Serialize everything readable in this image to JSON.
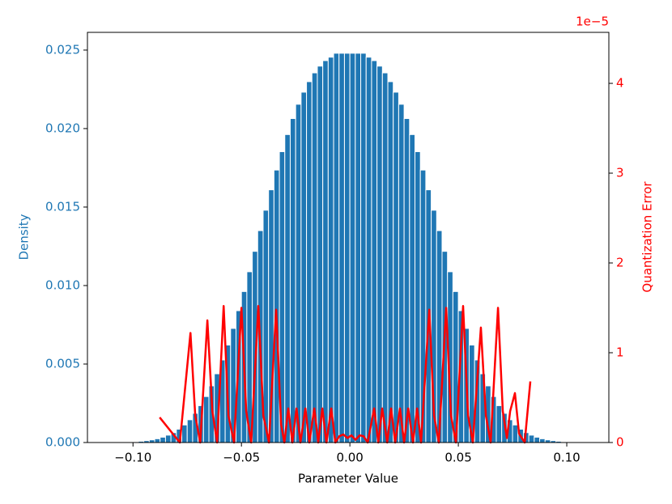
{
  "chart_data": {
    "type": "histogram",
    "xlabel": "Parameter Value",
    "ylabel": "Density",
    "y2label": "Quantization Error",
    "y2_offset_text": "1e−5",
    "color": "#1f77b4",
    "bins": [
      -0.1,
      -0.0975,
      -0.095,
      -0.0925,
      -0.09,
      -0.0875,
      -0.085,
      -0.0825,
      -0.08,
      -0.0775,
      -0.075,
      -0.0725,
      -0.07,
      -0.0675,
      -0.065,
      -0.0625,
      -0.06,
      -0.0575,
      -0.055,
      -0.0525,
      -0.05,
      -0.0475,
      -0.045,
      -0.0425,
      -0.04,
      -0.0375,
      -0.035,
      -0.0325,
      -0.03,
      -0.0275,
      -0.025,
      -0.0225,
      -0.02,
      -0.0175,
      -0.015,
      -0.0125,
      -0.01,
      -0.0075,
      -0.005,
      -0.0025,
      0,
      0.0025,
      0.005,
      0.0075,
      0.01,
      0.0125,
      0.015,
      0.0175,
      0.02,
      0.0225,
      0.025,
      0.0275,
      0.03,
      0.0325,
      0.035,
      0.0375,
      0.04,
      0.0425,
      0.045,
      0.0475,
      0.05,
      0.0525,
      0.055,
      0.0575,
      0.06,
      0.0625,
      0.065,
      0.0675,
      0.07,
      0.0725,
      0.075,
      0.0775,
      0.08,
      0.0825,
      0.085,
      0.0875,
      0.09,
      0.0925,
      0.095,
      0.0975,
      0.1
    ],
    "counts": [
      5e-05,
      8e-05,
      0.00012,
      0.00017,
      0.00024,
      0.00034,
      0.00047,
      0.00063,
      0.00085,
      0.00112,
      0.00145,
      0.00186,
      0.00235,
      0.00293,
      0.00361,
      0.00438,
      0.00526,
      0.00621,
      0.00727,
      0.0084,
      0.00962,
      0.01088,
      0.01218,
      0.0135,
      0.0148,
      0.0161,
      0.01736,
      0.01853,
      0.01962,
      0.02064,
      0.02155,
      0.02232,
      0.02299,
      0.02355,
      0.02398,
      0.02433,
      0.02455,
      0.0248,
      0.0248,
      0.0248,
      0.0248,
      0.0248,
      0.0248,
      0.02455,
      0.02433,
      0.02398,
      0.02355,
      0.02299,
      0.02232,
      0.02155,
      0.02064,
      0.01962,
      0.01853,
      0.01736,
      0.0161,
      0.0148,
      0.0135,
      0.01218,
      0.01088,
      0.00962,
      0.0084,
      0.00727,
      0.00621,
      0.00526,
      0.00438,
      0.00361,
      0.00293,
      0.00235,
      0.00186,
      0.00145,
      0.00112,
      0.00085,
      0.00063,
      0.00047,
      0.00034,
      0.00024,
      0.00017,
      0.00012,
      8e-05,
      5e-05
    ],
    "line": {
      "type": "line",
      "axis": "y2",
      "color": "#ff0000",
      "x": [
        -0.0877,
        -0.0784,
        -0.0735,
        -0.0713,
        -0.069,
        -0.0657,
        -0.0634,
        -0.0612,
        -0.0582,
        -0.056,
        -0.0534,
        -0.05,
        -0.0478,
        -0.0455,
        -0.0422,
        -0.0399,
        -0.0373,
        -0.034,
        -0.0317,
        -0.0302,
        -0.0284,
        -0.0265,
        -0.0246,
        -0.0228,
        -0.0205,
        -0.0187,
        -0.0164,
        -0.0146,
        -0.0127,
        -0.0108,
        -0.0086,
        -0.0067,
        -0.0049,
        -0.003,
        -0.0011,
        0.0007,
        0.0026,
        0.0045,
        0.0063,
        0.0082,
        0.0112,
        0.0131,
        0.0149,
        0.0172,
        0.019,
        0.0209,
        0.0231,
        0.025,
        0.0269,
        0.0291,
        0.031,
        0.0328,
        0.0366,
        0.0388,
        0.041,
        0.0444,
        0.0466,
        0.0489,
        0.0522,
        0.0545,
        0.0567,
        0.0604,
        0.0627,
        0.0649,
        0.0683,
        0.0705,
        0.0724,
        0.0739,
        0.0761,
        0.078,
        0.0806,
        0.0832
      ],
      "values": [
        0.28,
        0,
        1.22,
        0.3,
        0,
        1.36,
        0.35,
        0,
        1.52,
        0.3,
        0,
        1.5,
        0.35,
        0,
        1.52,
        0.3,
        0,
        1.48,
        0.2,
        0,
        0.38,
        0,
        0.38,
        0,
        0.38,
        0,
        0.38,
        0,
        0.38,
        0,
        0.38,
        0,
        0.07,
        0.09,
        0.05,
        0.08,
        0.03,
        0.08,
        0.07,
        0,
        0.38,
        0,
        0.38,
        0,
        0.38,
        0,
        0.38,
        0,
        0.38,
        0,
        0.38,
        0,
        1.48,
        0.3,
        0,
        1.5,
        0.3,
        0,
        1.52,
        0.3,
        0,
        1.28,
        0.3,
        0,
        1.5,
        0.35,
        0.05,
        0.35,
        0.55,
        0.1,
        0,
        0.68
      ]
    },
    "xlim": [
      -0.121,
      0.1194
    ],
    "ylim": [
      0,
      0.02613
    ],
    "y2lim": [
      0,
      4.568
    ],
    "xticks": [
      {
        "value": -0.1,
        "label": "−0.10"
      },
      {
        "value": -0.05,
        "label": "−0.05"
      },
      {
        "value": 0,
        "label": "0.00"
      },
      {
        "value": 0.05,
        "label": "0.05"
      },
      {
        "value": 0.1,
        "label": "0.10"
      }
    ],
    "yticks": [
      {
        "value": 0,
        "label": "0.000"
      },
      {
        "value": 0.005,
        "label": "0.005"
      },
      {
        "value": 0.01,
        "label": "0.010"
      },
      {
        "value": 0.015,
        "label": "0.015"
      },
      {
        "value": 0.02,
        "label": "0.020"
      },
      {
        "value": 0.025,
        "label": "0.025"
      }
    ],
    "y2ticks": [
      0,
      1,
      2,
      3,
      4
    ]
  }
}
